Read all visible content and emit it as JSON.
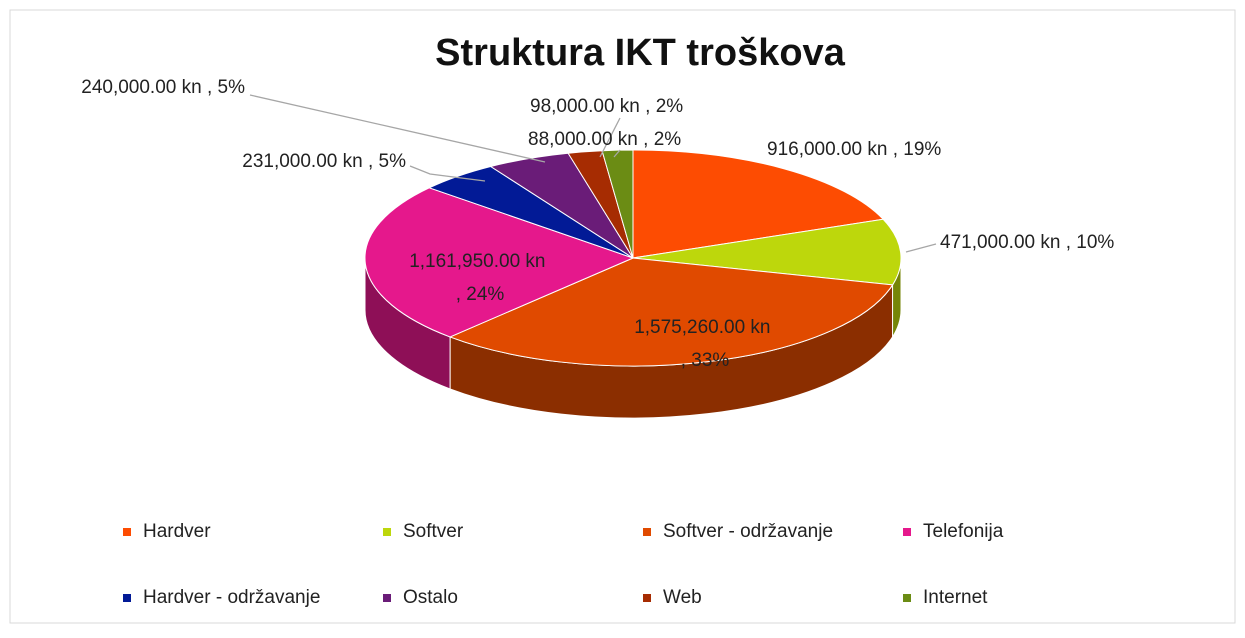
{
  "chart_data": {
    "type": "pie",
    "title": "Struktura IKT troškova",
    "categories": [
      "Hardver",
      "Softver",
      "Softver - održavanje",
      "Telefonija",
      "Hardver - održavanje",
      "Ostalo",
      "Web",
      "Internet"
    ],
    "values": [
      916000,
      471000,
      1575260,
      1161950,
      231000,
      240000,
      98000,
      88000
    ],
    "value_labels": [
      "916,000.00 kn , 19%",
      "471,000.00 kn , 10%",
      "1,575,260.00 kn , 33%",
      "1,161,950.00 kn , 24%",
      "231,000.00 kn , 5%",
      "240,000.00 kn , 5%",
      "98,000.00 kn , 2%",
      "88,000.00 kn , 2%"
    ],
    "colors": [
      "#fd4c02",
      "#bdd70c",
      "#e04a00",
      "#e5188c",
      "#021a96",
      "#6a1c78",
      "#a62c02",
      "#6b8c14"
    ],
    "legend": "bottom"
  }
}
